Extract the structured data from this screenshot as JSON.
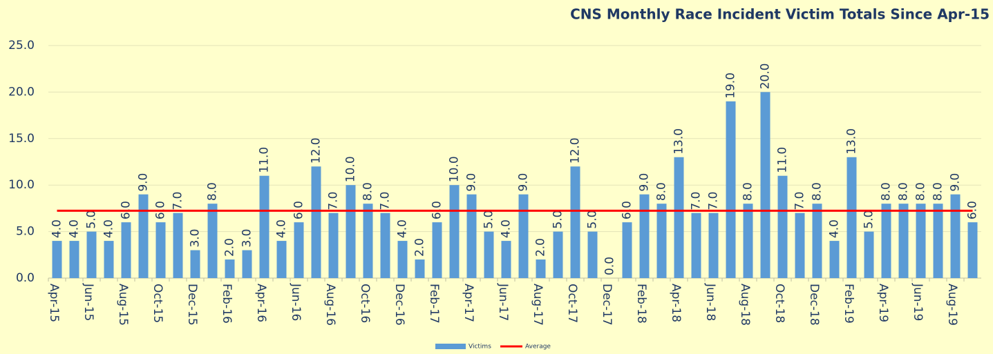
{
  "chart_data": {
    "type": "bar",
    "title": "CNS Monthly Race Incident Victim Totals Since Apr-15",
    "categories": [
      "Apr-15",
      null,
      "Jun-15",
      null,
      "Aug-15",
      null,
      "Oct-15",
      null,
      "Dec-15",
      null,
      "Feb-16",
      null,
      "Apr-16",
      null,
      "Jun-16",
      null,
      "Aug-16",
      null,
      "Oct-16",
      null,
      "Dec-16",
      null,
      "Feb-17",
      null,
      "Apr-17",
      null,
      "Jun-17",
      null,
      "Aug-17",
      null,
      "Oct-17",
      null,
      "Dec-17",
      null,
      "Feb-18",
      null,
      "Apr-18",
      null,
      "Jun-18",
      null,
      "Aug-18",
      null,
      "Oct-18",
      null,
      "Dec-18",
      null,
      "Feb-19",
      null,
      "Apr-19",
      null,
      "Jun-19",
      null,
      "Aug-19",
      null
    ],
    "series": [
      {
        "name": "Victims",
        "type": "bar",
        "color": "#5b9bd5",
        "values": [
          4,
          4,
          5,
          4,
          6,
          9,
          6,
          7,
          3,
          8,
          2,
          3,
          11,
          4,
          6,
          12,
          7,
          10,
          8,
          7,
          4,
          2,
          6,
          10,
          9,
          5,
          4,
          9,
          2,
          5,
          12,
          5,
          0,
          6,
          9,
          8,
          13,
          7,
          7,
          19,
          8,
          20,
          11,
          7,
          8,
          4,
          13,
          5,
          8,
          8,
          8,
          8,
          9,
          6
        ],
        "value_labels": [
          "4.0",
          "4.0",
          "5.0",
          "4.0",
          "6.0",
          "9.0",
          "6.0",
          "7.0",
          "3.0",
          "8.0",
          "2.0",
          "3.0",
          "11.0",
          "4.0",
          "6.0",
          "12.0",
          "7.0",
          "10.0",
          "8.0",
          "7.0",
          "4.0",
          "2.0",
          "6.0",
          "10.0",
          "9.0",
          "5.0",
          "4.0",
          "9.0",
          "2.0",
          "5.0",
          "12.0",
          "5.0",
          "0.0",
          "6.0",
          "9.0",
          "8.0",
          "13.0",
          "7.0",
          "7.0",
          "19.0",
          "8.0",
          "20.0",
          "11.0",
          "7.0",
          "8.0",
          "4.0",
          "13.0",
          "5.0",
          "8.0",
          "8.0",
          "8.0",
          "8.0",
          "9.0",
          "6.0"
        ]
      },
      {
        "name": "Average",
        "type": "line",
        "color": "#ff0000",
        "values": [
          7.24,
          7.24,
          7.24,
          7.24,
          7.24,
          7.24,
          7.24,
          7.24,
          7.24,
          7.24,
          7.24,
          7.24,
          7.24,
          7.24,
          7.24,
          7.24,
          7.24,
          7.24,
          7.24,
          7.24,
          7.24,
          7.24,
          7.24,
          7.24,
          7.24,
          7.24,
          7.24,
          7.24,
          7.24,
          7.24,
          7.24,
          7.24,
          7.24,
          7.24,
          7.24,
          7.24,
          7.24,
          7.24,
          7.24,
          7.24,
          7.24,
          7.24,
          7.24,
          7.24,
          7.24,
          7.24,
          7.24,
          7.24,
          7.24,
          7.24,
          7.24,
          7.24,
          7.24,
          7.24
        ]
      }
    ],
    "ylim": [
      0,
      25
    ],
    "yticks": [
      {
        "value": 0,
        "label": "0.0"
      },
      {
        "value": 5,
        "label": "5.0"
      },
      {
        "value": 10,
        "label": "10.0"
      },
      {
        "value": 15,
        "label": "15.0"
      },
      {
        "value": 20,
        "label": "20.0"
      },
      {
        "value": 25,
        "label": "25.0"
      }
    ],
    "grid": true,
    "legend": "bottom"
  }
}
